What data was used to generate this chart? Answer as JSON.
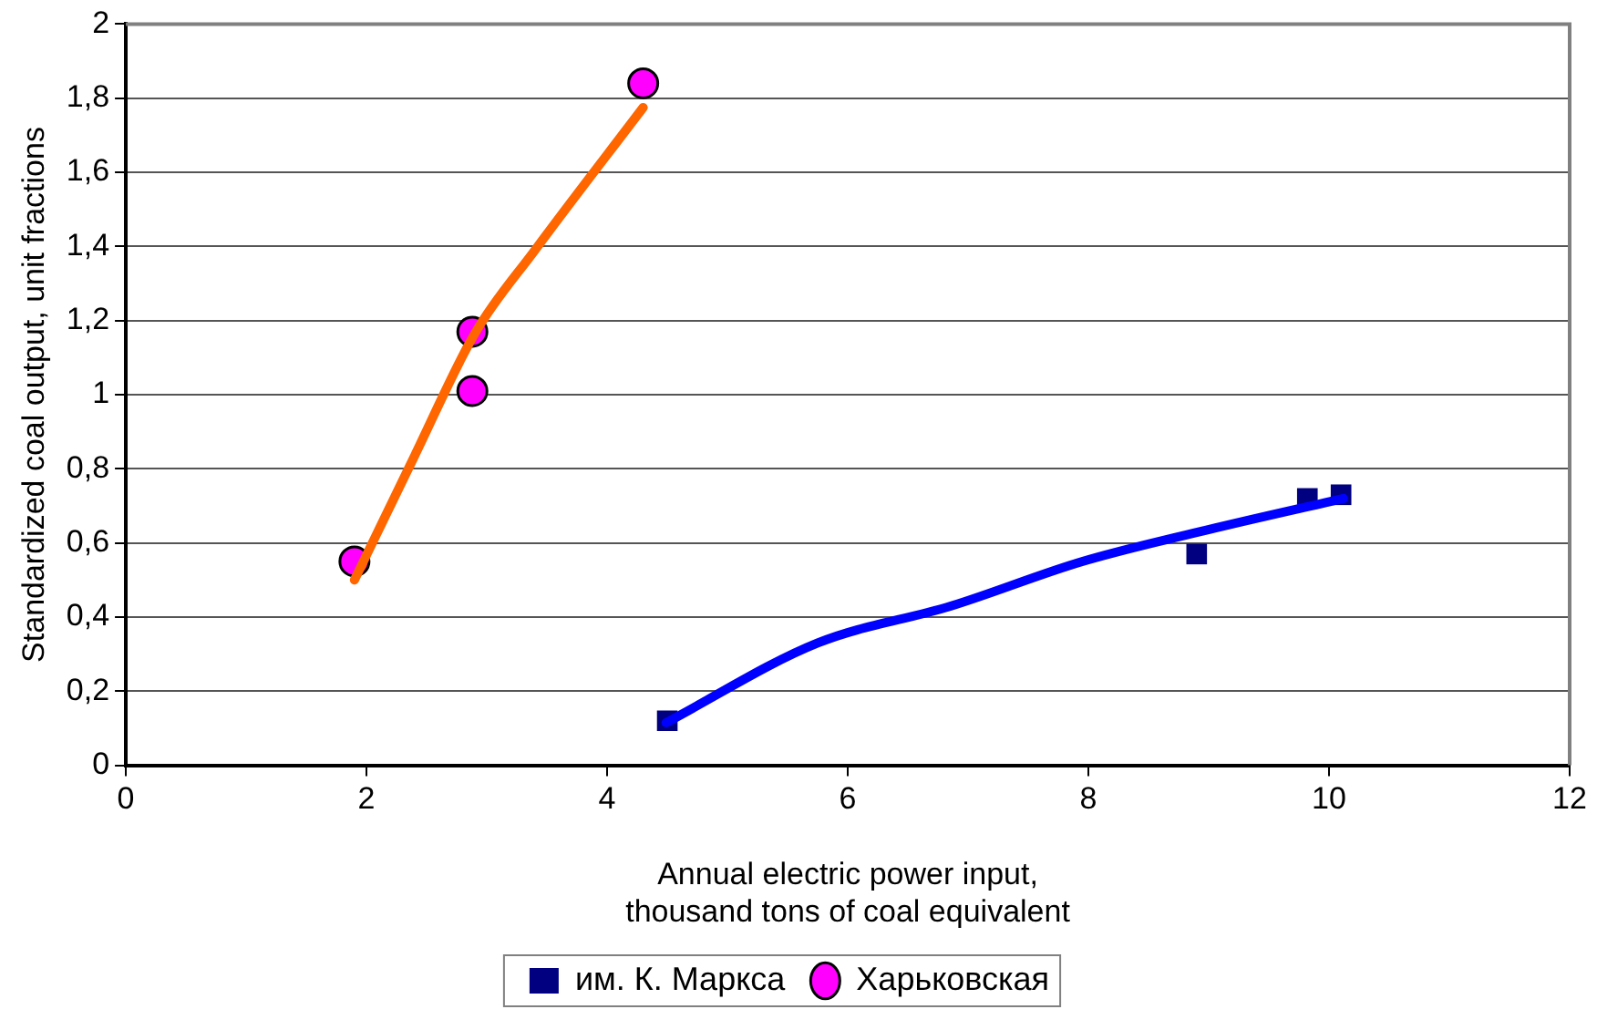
{
  "chart_data": {
    "type": "scatter",
    "xlabel": [
      "Annual electric power input,",
      "thousand tons of coal equivalent"
    ],
    "ylabel": "Standardized coal output, unit fractions",
    "xlim": [
      0,
      12
    ],
    "xticks": [
      0,
      2,
      4,
      6,
      8,
      10,
      12
    ],
    "ylim": [
      0,
      2
    ],
    "yticks": [
      0,
      {
        "value": 0.2,
        "label": "0,2"
      },
      {
        "value": 0.4,
        "label": "0,4"
      },
      {
        "value": 0.6,
        "label": "0,6"
      },
      {
        "value": 0.8,
        "label": "0,8"
      },
      1,
      {
        "value": 1.2,
        "label": "1,2"
      },
      {
        "value": 1.4,
        "label": "1,4"
      },
      {
        "value": 1.6,
        "label": "1,6"
      },
      {
        "value": 1.8,
        "label": "1,8"
      },
      2
    ],
    "grid": "y",
    "legend": "bottom",
    "series": [
      {
        "name": "им. К. Маркса",
        "type": "scatter",
        "marker": "square",
        "color": "#000080",
        "x": [
          4.5,
          8.9,
          9.82,
          10.1
        ],
        "values": [
          0.12,
          0.57,
          0.72,
          0.73
        ]
      },
      {
        "name": "Харьковская",
        "type": "scatter",
        "marker": "circle",
        "color": "#ff00ff",
        "x": [
          1.9,
          2.88,
          2.88,
          4.3
        ],
        "values": [
          0.55,
          1.17,
          1.01,
          1.84
        ]
      },
      {
        "type": "line",
        "marker": "none",
        "color": "#0000ff",
        "x": [
          4.49,
          5.75,
          6.86,
          7.95,
          9.05,
          10.12
        ],
        "values": [
          0.115,
          0.33,
          0.43,
          0.55,
          0.64,
          0.72
        ]
      },
      {
        "type": "line",
        "marker": "none",
        "color": "#ff6600",
        "x": [
          1.9,
          2.4,
          2.9,
          3.4,
          4.3
        ],
        "values": [
          0.5,
          0.835,
          1.165,
          1.39,
          1.775
        ]
      }
    ]
  }
}
